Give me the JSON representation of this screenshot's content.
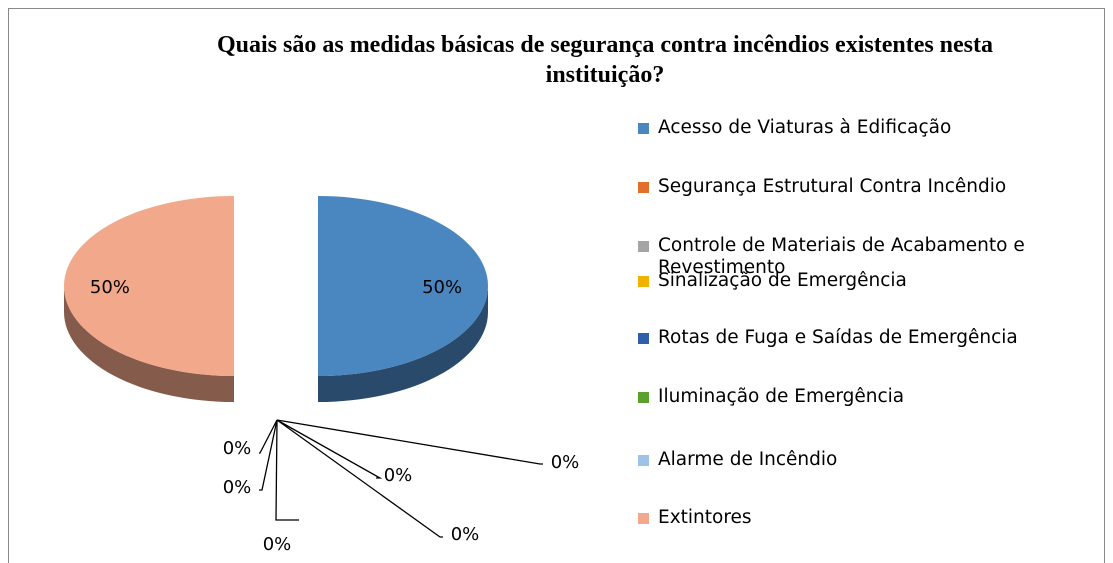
{
  "chart_data": {
    "type": "pie",
    "title": "Quais são as medidas básicas de segurança contra incêndios existentes nesta instituição?",
    "categories": [
      "Acesso de Viaturas à Edificação",
      "Segurança Estrutural Contra Incêndio",
      "Controle de Materiais de Acabamento e Revestimento",
      "Sinalização de Emergência",
      "Rotas de Fuga e Saídas de Emergência",
      "Iluminação de Emergência",
      "Alarme de Incêndio",
      "Extintores"
    ],
    "values": [
      50,
      0,
      0,
      0,
      0,
      0,
      0,
      50
    ],
    "value_labels": [
      "50%",
      "0%",
      "0%",
      "0%",
      "0%",
      "0%",
      "0%",
      "50%"
    ],
    "colors": [
      "#4a86c0",
      "#e0702a",
      "#a5a5a5",
      "#f0b400",
      "#2f5fa8",
      "#5aa02c",
      "#9dc3e6",
      "#f2a88a"
    ],
    "legend": "right"
  }
}
